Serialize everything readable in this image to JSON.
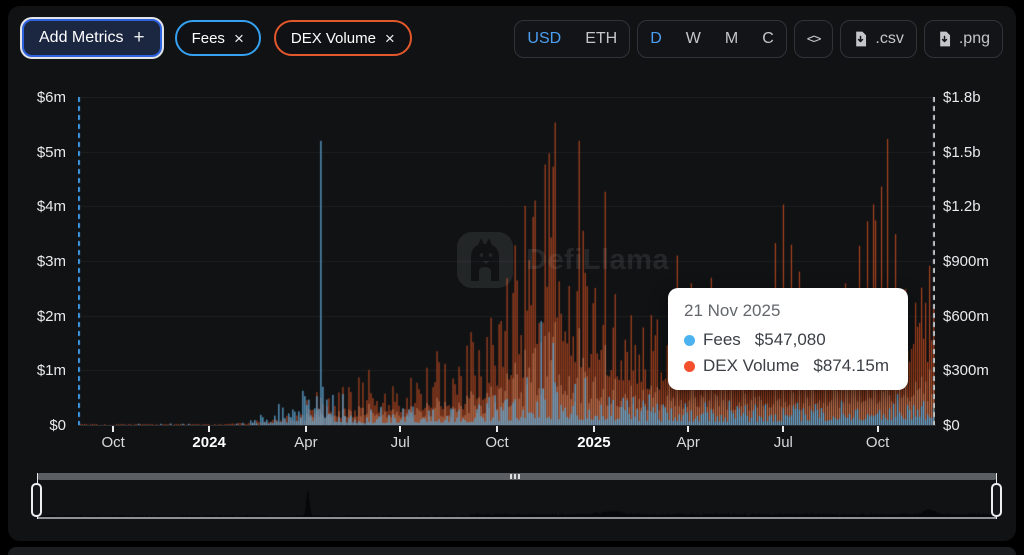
{
  "header": {
    "add_metrics_label": "Add Metrics",
    "plus_glyph": "+",
    "close_glyph": "×",
    "metrics": [
      {
        "label": "Fees",
        "color": "#35a1f0"
      },
      {
        "label": "DEX Volume",
        "color": "#e2572b"
      }
    ],
    "currency_toggle": {
      "options": [
        "USD",
        "ETH"
      ],
      "active": "USD"
    },
    "interval_toggle": {
      "options": [
        "D",
        "W",
        "M",
        "C"
      ],
      "active": "D"
    },
    "code_glyph": "<>",
    "export_csv_label": ".csv",
    "export_png_label": ".png"
  },
  "watermark": {
    "text": "DefiLlama"
  },
  "tooltip": {
    "date": "21 Nov 2025",
    "rows": [
      {
        "label": "Fees",
        "value": "$547,080",
        "color": "#4db3f0"
      },
      {
        "label": "DEX Volume",
        "value": "$874.15m",
        "color": "#f4502c"
      }
    ]
  },
  "chart_data": {
    "type": "bar",
    "title": "",
    "x_range": [
      "Sep 2023",
      "21 Nov 2025"
    ],
    "grid": true,
    "x_ticks": [
      {
        "label": "Oct",
        "f": 0.041,
        "bold": false
      },
      {
        "label": "2024",
        "f": 0.153,
        "bold": true
      },
      {
        "label": "Apr",
        "f": 0.266,
        "bold": false
      },
      {
        "label": "Jul",
        "f": 0.376,
        "bold": false
      },
      {
        "label": "Oct",
        "f": 0.489,
        "bold": false
      },
      {
        "label": "2025",
        "f": 0.602,
        "bold": true
      },
      {
        "label": "Apr",
        "f": 0.712,
        "bold": false
      },
      {
        "label": "Jul",
        "f": 0.823,
        "bold": false
      },
      {
        "label": "Oct",
        "f": 0.933,
        "bold": false
      }
    ],
    "left_axis": {
      "series": "Fees",
      "unit": "USD",
      "max_millions": 6,
      "ticks": [
        "$6m",
        "$5m",
        "$4m",
        "$3m",
        "$2m",
        "$1m",
        "$0"
      ]
    },
    "right_axis": {
      "series": "DEX Volume",
      "unit": "USD",
      "max_millions": 1800,
      "ticks": [
        "$1.8b",
        "$1.5b",
        "$1.2b",
        "$900m",
        "$600m",
        "$300m",
        "$0"
      ]
    },
    "series": [
      {
        "name": "Fees",
        "axis": "left",
        "color": "#5fa8d6",
        "envelope_millions": [
          [
            0.0,
            0.002,
            0.02
          ],
          [
            0.18,
            0.003,
            0.03
          ],
          [
            0.22,
            0.02,
            0.25
          ],
          [
            0.25,
            0.05,
            0.55
          ],
          [
            0.27,
            0.08,
            0.8
          ],
          [
            0.3,
            0.06,
            0.6
          ],
          [
            0.33,
            0.03,
            0.35
          ],
          [
            0.4,
            0.04,
            0.35
          ],
          [
            0.45,
            0.05,
            0.4
          ],
          [
            0.5,
            0.08,
            0.7
          ],
          [
            0.54,
            0.1,
            1.3
          ],
          [
            0.58,
            0.1,
            1.0
          ],
          [
            0.62,
            0.08,
            0.6
          ],
          [
            0.7,
            0.06,
            0.45
          ],
          [
            0.8,
            0.06,
            0.4
          ],
          [
            0.9,
            0.08,
            0.5
          ],
          [
            1.0,
            0.1,
            0.55
          ]
        ],
        "spikes_millions": [
          [
            0.283,
            5.2
          ],
          [
            0.54,
            1.9
          ],
          [
            0.556,
            1.5
          ]
        ]
      },
      {
        "name": "DEX Volume",
        "axis": "right",
        "color": "#a8431f",
        "envelope_millions": [
          [
            0.0,
            0.5,
            3
          ],
          [
            0.1,
            0.5,
            4
          ],
          [
            0.18,
            1,
            8
          ],
          [
            0.22,
            5,
            40
          ],
          [
            0.25,
            20,
            120
          ],
          [
            0.28,
            30,
            180
          ],
          [
            0.32,
            40,
            260
          ],
          [
            0.36,
            60,
            330
          ],
          [
            0.4,
            80,
            420
          ],
          [
            0.44,
            70,
            380
          ],
          [
            0.47,
            120,
            600
          ],
          [
            0.5,
            180,
            800
          ],
          [
            0.53,
            300,
            1250
          ],
          [
            0.56,
            350,
            1500
          ],
          [
            0.58,
            320,
            1400
          ],
          [
            0.6,
            300,
            1300
          ],
          [
            0.63,
            250,
            950
          ],
          [
            0.66,
            200,
            750
          ],
          [
            0.7,
            180,
            700
          ],
          [
            0.73,
            220,
            850
          ],
          [
            0.76,
            200,
            800
          ],
          [
            0.8,
            180,
            750
          ],
          [
            0.83,
            200,
            1100
          ],
          [
            0.86,
            180,
            700
          ],
          [
            0.9,
            250,
            900
          ],
          [
            0.93,
            300,
            1300
          ],
          [
            0.96,
            300,
            1000
          ],
          [
            1.0,
            350,
            900
          ]
        ],
        "spikes_millions": [
          [
            0.545,
            1430
          ],
          [
            0.557,
            1660
          ],
          [
            0.585,
            1560
          ],
          [
            0.615,
            1280
          ],
          [
            0.7,
            930
          ],
          [
            0.825,
            1210
          ],
          [
            0.947,
            1570
          ],
          [
            0.995,
            874.15
          ]
        ]
      }
    ],
    "highlighted_point": {
      "date": "21 Nov 2025",
      "fees_usd": 547080,
      "dex_volume_usd": 874150000
    },
    "boundary_lines": {
      "left_color": "#3e9bea",
      "right_color": "#c3c6c9",
      "style": "dashed"
    }
  }
}
